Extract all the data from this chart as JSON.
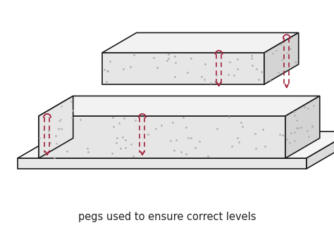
{
  "caption": "pegs used to ensure correct levels",
  "caption_fontsize": 10.5,
  "bg_color": "#ffffff",
  "outline_color": "#1a1a1a",
  "concrete_color": "#e6e6e6",
  "concrete_top_color": "#f2f2f2",
  "concrete_side_color": "#d4d4d4",
  "base_top_color": "#f5f5f5",
  "base_front_color": "#e8e8e8",
  "base_side_color": "#dcdcdc",
  "concrete_dot_color": "#b0b0b0",
  "peg_color": "#a0203a",
  "figure_width": 4.74,
  "figure_height": 3.2,
  "dpi": 100
}
